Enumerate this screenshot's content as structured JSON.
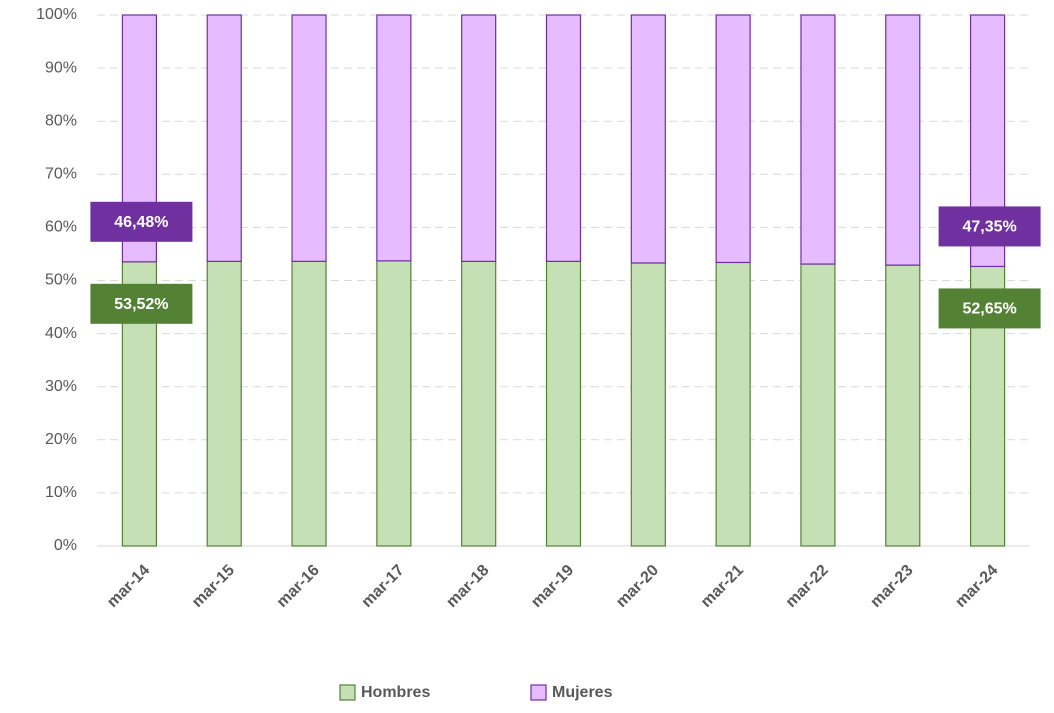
{
  "chart_data": {
    "type": "stacked_bar",
    "categories": [
      "mar-14",
      "mar-15",
      "mar-16",
      "mar-17",
      "mar-18",
      "mar-19",
      "mar-20",
      "mar-21",
      "mar-22",
      "mar-23",
      "mar-24"
    ],
    "series": [
      {
        "name": "Hombres",
        "color": "#c5e0b4",
        "stroke": "#548235",
        "values": [
          53.52,
          53.6,
          53.6,
          53.7,
          53.6,
          53.6,
          53.3,
          53.4,
          53.1,
          52.9,
          52.65
        ],
        "value_labels": [
          "53,52%",
          null,
          null,
          null,
          null,
          null,
          null,
          null,
          null,
          null,
          "52,65%"
        ]
      },
      {
        "name": "Mujeres",
        "color": "#e6bbff",
        "stroke": "#7030a0",
        "values": [
          46.48,
          46.4,
          46.4,
          46.3,
          46.4,
          46.4,
          46.7,
          46.6,
          46.9,
          47.1,
          47.35
        ],
        "value_labels": [
          "46,48%",
          null,
          null,
          null,
          null,
          null,
          null,
          null,
          null,
          null,
          "47,35%"
        ]
      }
    ],
    "ylim": [
      0,
      100
    ],
    "yticks": [
      {
        "value": 0,
        "label": "0%"
      },
      {
        "value": 10,
        "label": "10%"
      },
      {
        "value": 20,
        "label": "20%"
      },
      {
        "value": 30,
        "label": "30%"
      },
      {
        "value": 40,
        "label": "40%"
      },
      {
        "value": 50,
        "label": "50%"
      },
      {
        "value": 60,
        "label": "60%"
      },
      {
        "value": 70,
        "label": "70%"
      },
      {
        "value": 80,
        "label": "80%"
      },
      {
        "value": 90,
        "label": "90%"
      },
      {
        "value": 100,
        "label": "100%"
      }
    ],
    "grid": true,
    "legend": "bottom"
  }
}
